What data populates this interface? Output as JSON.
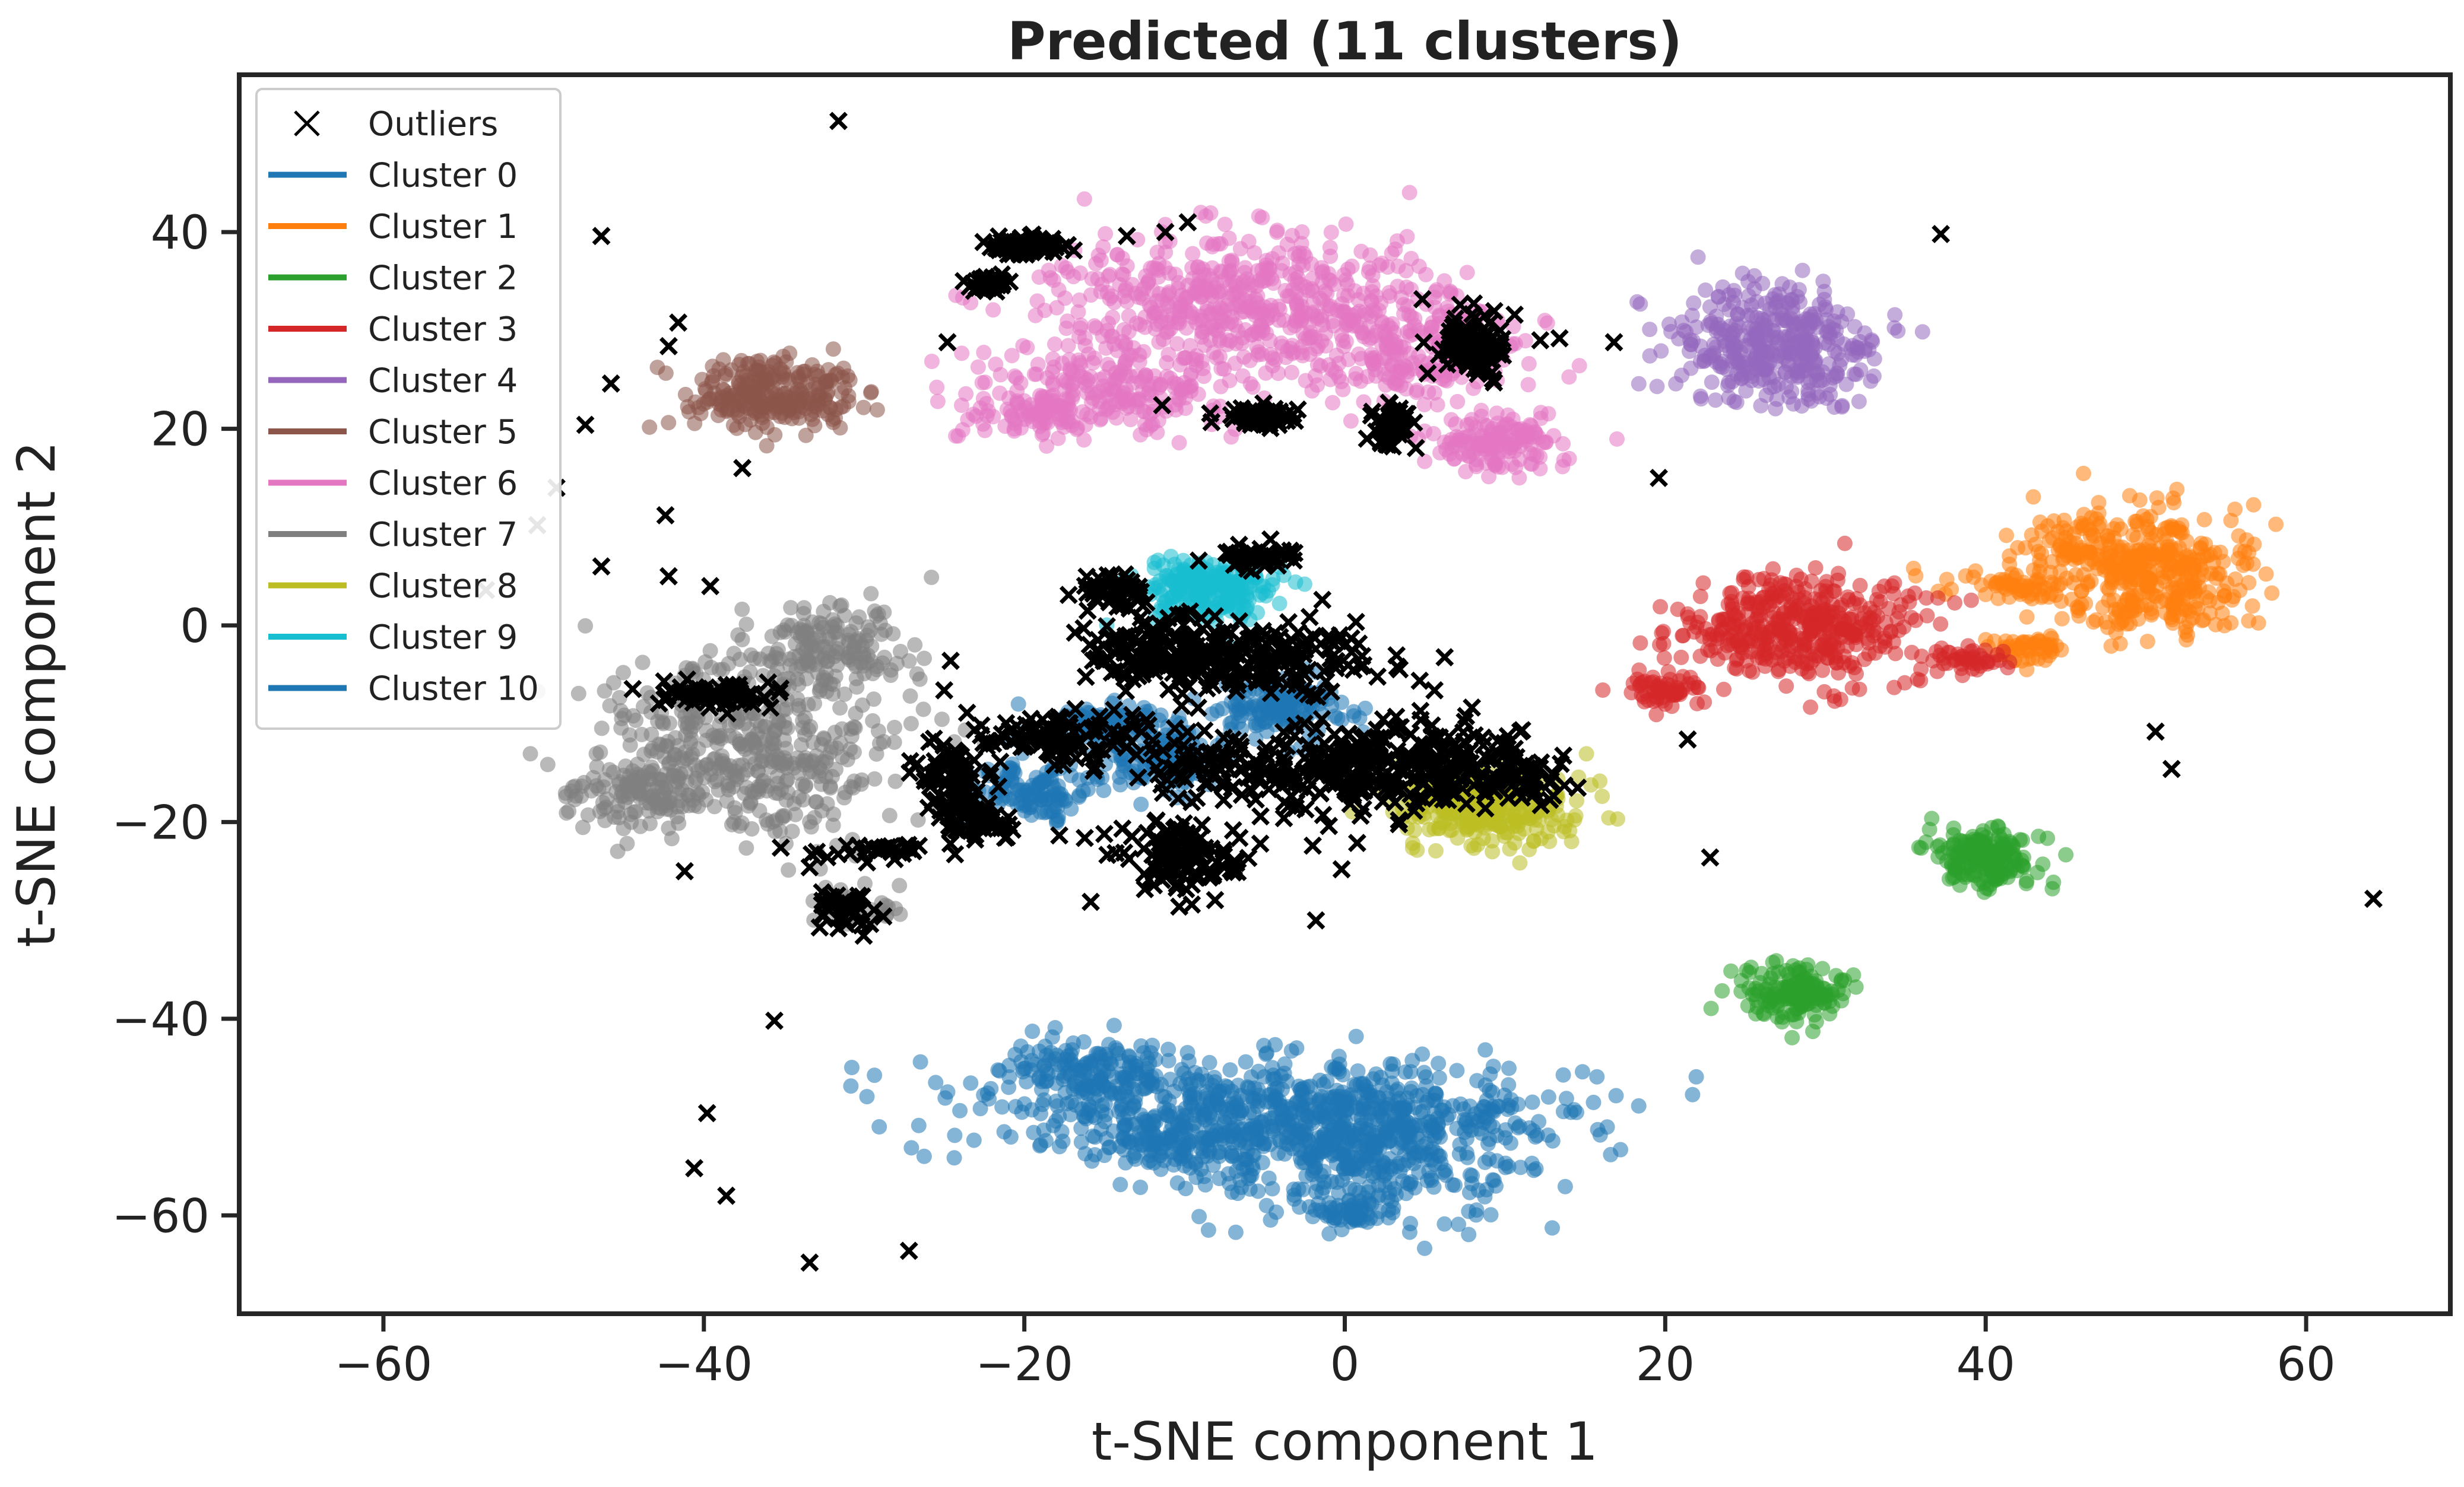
{
  "chart_data": {
    "type": "scatter",
    "title": "Predicted (11 clusters)",
    "xlabel": "t-SNE component 1",
    "ylabel": "t-SNE component 2",
    "xlim": [
      -69,
      69
    ],
    "ylim": [
      -70,
      56
    ],
    "xticks": [
      -60,
      -40,
      -20,
      0,
      20,
      40,
      60
    ],
    "yticks": [
      -60,
      -40,
      -20,
      0,
      20,
      40
    ],
    "xtick_labels": [
      "−60",
      "−40",
      "−20",
      "0",
      "20",
      "40",
      "60"
    ],
    "ytick_labels": [
      "−60",
      "−40",
      "−20",
      "0",
      "20",
      "40"
    ],
    "grid": false,
    "legend_position": "upper-left",
    "outliers": {
      "name": "Outliers",
      "color": "#000000",
      "marker": "x",
      "points": [
        [
          -31.6,
          51.3
        ],
        [
          -46.4,
          39.6
        ],
        [
          -41.6,
          30.8
        ],
        [
          -42.2,
          28.4
        ],
        [
          -45.8,
          24.6
        ],
        [
          -47.4,
          20.4
        ],
        [
          -37.6,
          16.0
        ],
        [
          -49.2,
          14.0
        ],
        [
          -42.4,
          11.2
        ],
        [
          -50.4,
          10.2
        ],
        [
          -46.4,
          6.0
        ],
        [
          -42.2,
          5.0
        ],
        [
          -39.6,
          4.0
        ],
        [
          -53.6,
          3.6
        ],
        [
          -24.8,
          28.8
        ],
        [
          -19.6,
          39.6
        ],
        [
          -13.6,
          39.6
        ],
        [
          -11.2,
          40.0
        ],
        [
          -9.8,
          41.0
        ],
        [
          -11.4,
          22.4
        ],
        [
          -4.6,
          21.6
        ],
        [
          -3.6,
          20.8
        ],
        [
          2.6,
          18.4
        ],
        [
          7.2,
          32.6
        ],
        [
          8.8,
          29.4
        ],
        [
          10.6,
          31.6
        ],
        [
          12.2,
          29.0
        ],
        [
          13.4,
          29.2
        ],
        [
          16.8,
          28.8
        ],
        [
          37.2,
          39.8
        ],
        [
          19.6,
          15.0
        ],
        [
          21.4,
          -11.6
        ],
        [
          22.8,
          -23.6
        ],
        [
          50.6,
          -10.8
        ],
        [
          51.6,
          -14.6
        ],
        [
          64.2,
          -27.8
        ],
        [
          -42.4,
          -7.6
        ],
        [
          -39.8,
          -7.8
        ],
        [
          -36.0,
          -5.8
        ],
        [
          -41.2,
          -25.0
        ],
        [
          -35.2,
          -22.6
        ],
        [
          -33.4,
          -24.6
        ],
        [
          -31.6,
          -30.8
        ],
        [
          -28.8,
          -29.6
        ],
        [
          -27.4,
          -22.6
        ],
        [
          -25.6,
          -15.6
        ],
        [
          -25.0,
          -6.6
        ],
        [
          -24.6,
          -3.6
        ],
        [
          -35.6,
          -40.2
        ],
        [
          -39.8,
          -49.6
        ],
        [
          -40.6,
          -55.2
        ],
        [
          -38.6,
          -58.0
        ],
        [
          -33.4,
          -64.8
        ],
        [
          -27.2,
          -63.6
        ],
        [
          -24.2,
          -14.2
        ],
        [
          -22.2,
          -19.6
        ],
        [
          -21.2,
          -21.6
        ],
        [
          -18.4,
          -13.0
        ],
        [
          -15.6,
          -14.4
        ],
        [
          -14.4,
          -8.6
        ],
        [
          -13.6,
          4.6
        ],
        [
          -12.6,
          2.0
        ],
        [
          -11.6,
          0.2
        ],
        [
          -10.0,
          -3.8
        ],
        [
          -8.6,
          -6.4
        ],
        [
          -7.0,
          -11.6
        ],
        [
          -5.4,
          -15.8
        ],
        [
          -3.8,
          -19.6
        ],
        [
          -2.0,
          -22.4
        ],
        [
          -0.2,
          -24.8
        ],
        [
          -1.8,
          -30.0
        ],
        [
          2.0,
          -10.6
        ],
        [
          4.4,
          -14.6
        ],
        [
          5.6,
          -6.6
        ],
        [
          10.2,
          -13.6
        ],
        [
          12.8,
          -16.0
        ],
        [
          -6.6,
          8.2
        ],
        [
          -3.4,
          7.6
        ],
        [
          -1.4,
          2.6
        ],
        [
          -0.4,
          -1.6
        ],
        [
          -10.4,
          -17.6
        ],
        [
          -11.4,
          -22.6
        ],
        [
          -9.0,
          -21.6
        ],
        [
          -8.2,
          -25.2
        ]
      ]
    },
    "dense_outlier_blobs": [
      {
        "center": [
          -19.8,
          38.6
        ],
        "spread": [
          1.2,
          0.6
        ],
        "count": 90
      },
      {
        "center": [
          -22.2,
          34.8
        ],
        "spread": [
          0.8,
          0.6
        ],
        "count": 40
      },
      {
        "center": [
          -5.4,
          21.2
        ],
        "spread": [
          1.4,
          0.6
        ],
        "count": 60
      },
      {
        "center": [
          3.0,
          20.2
        ],
        "spread": [
          0.7,
          1.4
        ],
        "count": 50
      },
      {
        "center": [
          8.0,
          28.4
        ],
        "spread": [
          1.4,
          2.2
        ],
        "count": 90
      },
      {
        "center": [
          -39.0,
          -7.0
        ],
        "spread": [
          2.5,
          0.9
        ],
        "count": 60
      },
      {
        "center": [
          -31.4,
          -28.8
        ],
        "spread": [
          1.4,
          1.2
        ],
        "count": 40
      },
      {
        "center": [
          -29.0,
          -22.8
        ],
        "spread": [
          2.2,
          0.6
        ],
        "count": 30
      },
      {
        "center": [
          -24.2,
          -16.0
        ],
        "spread": [
          1.6,
          2.6
        ],
        "count": 70
      },
      {
        "center": [
          -22.6,
          -19.6
        ],
        "spread": [
          1.4,
          1.4
        ],
        "count": 50
      },
      {
        "center": [
          -18.0,
          -11.2
        ],
        "spread": [
          4.0,
          1.6
        ],
        "count": 110
      },
      {
        "center": [
          -11.4,
          -2.6
        ],
        "spread": [
          3.2,
          2.4
        ],
        "count": 140
      },
      {
        "center": [
          -4.6,
          -3.6
        ],
        "spread": [
          4.4,
          2.4
        ],
        "count": 150
      },
      {
        "center": [
          -1.6,
          -14.8
        ],
        "spread": [
          3.4,
          2.8
        ],
        "count": 130
      },
      {
        "center": [
          4.8,
          -13.8
        ],
        "spread": [
          4.2,
          3.0
        ],
        "count": 160
      },
      {
        "center": [
          -10.0,
          -23.6
        ],
        "spread": [
          2.6,
          2.6
        ],
        "count": 120
      },
      {
        "center": [
          -14.6,
          3.6
        ],
        "spread": [
          1.6,
          1.2
        ],
        "count": 40
      },
      {
        "center": [
          -5.6,
          7.0
        ],
        "spread": [
          1.4,
          0.8
        ],
        "count": 40
      },
      {
        "center": [
          -8.8,
          -14.2
        ],
        "spread": [
          2.4,
          1.8
        ],
        "count": 60
      },
      {
        "center": [
          10.4,
          -15.6
        ],
        "spread": [
          2.6,
          1.6
        ],
        "count": 60
      }
    ],
    "series": [
      {
        "name": "Cluster 0",
        "color": "#1f77b4",
        "blobs": [
          {
            "center": [
              -6.0,
              -49.0
            ],
            "spread": [
              9.5,
              2.4
            ],
            "count": 520
          },
          {
            "center": [
              1.8,
              -53.0
            ],
            "spread": [
              4.8,
              3.6
            ],
            "count": 420
          },
          {
            "center": [
              -15.8,
              -45.2
            ],
            "spread": [
              2.8,
              1.6
            ],
            "count": 130
          },
          {
            "center": [
              -9.4,
              -53.0
            ],
            "spread": [
              2.8,
              2.0
            ],
            "count": 160
          },
          {
            "center": [
              0.4,
              -59.6
            ],
            "spread": [
              1.4,
              1.0
            ],
            "count": 60
          }
        ]
      },
      {
        "name": "Cluster 1",
        "color": "#ff7f0e",
        "blobs": [
          {
            "center": [
              50.8,
              5.0
            ],
            "spread": [
              3.0,
              3.2
            ],
            "count": 340
          },
          {
            "center": [
              42.0,
              4.0
            ],
            "spread": [
              2.4,
              0.8
            ],
            "count": 70
          },
          {
            "center": [
              42.6,
              -2.2
            ],
            "spread": [
              1.4,
              0.8
            ],
            "count": 50
          },
          {
            "center": [
              45.6,
              8.2
            ],
            "spread": [
              2.2,
              1.4
            ],
            "count": 70
          }
        ]
      },
      {
        "name": "Cluster 2",
        "color": "#2ca02c",
        "blobs": [
          {
            "center": [
              40.0,
              -23.6
            ],
            "spread": [
              1.6,
              1.6
            ],
            "count": 180
          },
          {
            "center": [
              28.4,
              -37.6
            ],
            "spread": [
              1.6,
              1.4
            ],
            "count": 160
          }
        ]
      },
      {
        "name": "Cluster 3",
        "color": "#d62728",
        "blobs": [
          {
            "center": [
              28.6,
              -0.4
            ],
            "spread": [
              3.8,
              2.6
            ],
            "count": 420
          },
          {
            "center": [
              20.2,
              -6.6
            ],
            "spread": [
              1.2,
              0.8
            ],
            "count": 60
          },
          {
            "center": [
              38.6,
              -3.4
            ],
            "spread": [
              1.2,
              0.6
            ],
            "count": 40
          }
        ]
      },
      {
        "name": "Cluster 4",
        "color": "#9467bd",
        "blobs": [
          {
            "center": [
              27.0,
              28.4
            ],
            "spread": [
              3.2,
              2.8
            ],
            "count": 380
          }
        ]
      },
      {
        "name": "Cluster 5",
        "color": "#8c564b",
        "blobs": [
          {
            "center": [
              -35.6,
              23.4
            ],
            "spread": [
              2.6,
              1.9
            ],
            "count": 260
          }
        ]
      },
      {
        "name": "Cluster 6",
        "color": "#e377c2",
        "blobs": [
          {
            "center": [
              -6.6,
              32.8
            ],
            "spread": [
              6.4,
              3.6
            ],
            "count": 560
          },
          {
            "center": [
              -15.4,
              23.6
            ],
            "spread": [
              4.0,
              2.2
            ],
            "count": 220
          },
          {
            "center": [
              4.6,
              27.8
            ],
            "spread": [
              3.4,
              3.0
            ],
            "count": 220
          },
          {
            "center": [
              9.4,
              18.6
            ],
            "spread": [
              2.0,
              1.4
            ],
            "count": 150
          },
          {
            "center": [
              -20.0,
              21.4
            ],
            "spread": [
              2.0,
              1.0
            ],
            "count": 60
          }
        ]
      },
      {
        "name": "Cluster 7",
        "color": "#7f7f7f",
        "blobs": [
          {
            "center": [
              -37.4,
              -12.6
            ],
            "spread": [
              4.4,
              4.6
            ],
            "count": 460
          },
          {
            "center": [
              -32.0,
              -2.4
            ],
            "spread": [
              2.4,
              2.2
            ],
            "count": 160
          },
          {
            "center": [
              -44.4,
              -17.4
            ],
            "spread": [
              2.2,
              1.6
            ],
            "count": 90
          },
          {
            "center": [
              -30.4,
              -28.6
            ],
            "spread": [
              1.4,
              1.0
            ],
            "count": 40
          }
        ]
      },
      {
        "name": "Cluster 8",
        "color": "#bcbd22",
        "blobs": [
          {
            "center": [
              8.6,
              -18.6
            ],
            "spread": [
              2.8,
              2.0
            ],
            "count": 300
          }
        ]
      },
      {
        "name": "Cluster 9",
        "color": "#17becf",
        "blobs": [
          {
            "center": [
              -8.4,
              3.8
            ],
            "spread": [
              2.2,
              1.6
            ],
            "count": 220
          }
        ]
      },
      {
        "name": "Cluster 10",
        "color": "#1f77b4",
        "blobs": [
          {
            "center": [
              -19.4,
              -17.0
            ],
            "spread": [
              1.8,
              1.4
            ],
            "count": 120
          },
          {
            "center": [
              -14.8,
              -10.2
            ],
            "spread": [
              1.8,
              1.2
            ],
            "count": 110
          },
          {
            "center": [
              -11.4,
              -13.6
            ],
            "spread": [
              1.6,
              1.6
            ],
            "count": 110
          },
          {
            "center": [
              -4.0,
              -8.2
            ],
            "spread": [
              2.0,
              1.6
            ],
            "count": 150
          }
        ]
      }
    ]
  }
}
